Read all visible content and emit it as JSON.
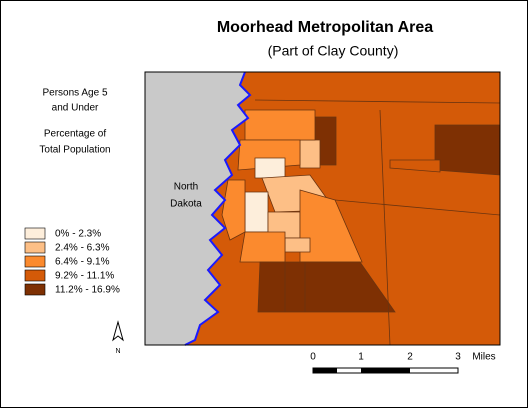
{
  "header": {
    "title": "Moorhead Metropolitan Area",
    "subtitle": "(Part of Clay County)"
  },
  "legend": {
    "title_lines": [
      "Persons Age 5",
      "and Under",
      "Percentage of",
      "Total Population"
    ],
    "items": [
      {
        "label": "0% - 2.3%",
        "color": "#fdeedb"
      },
      {
        "label": "2.4% - 6.3%",
        "color": "#fdbf86"
      },
      {
        "label": "6.4% - 9.1%",
        "color": "#fb8a2e"
      },
      {
        "label": "9.2% - 11.1%",
        "color": "#d45a08"
      },
      {
        "label": "11.2% - 16.9%",
        "color": "#7e3003"
      }
    ]
  },
  "map": {
    "region_label_lines": [
      "North",
      "Dakota"
    ]
  },
  "scale_bar": {
    "labels": [
      "0",
      "1",
      "2",
      "3"
    ],
    "unit": "Miles"
  },
  "north_arrow": {
    "label": "N"
  }
}
